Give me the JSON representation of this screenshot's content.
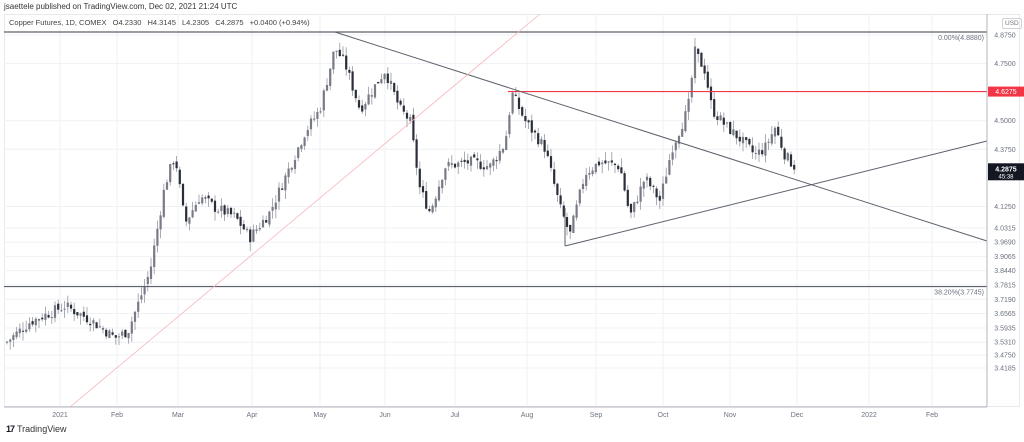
{
  "header": {
    "publish_line": "jsaettele published on TradingView.com, Dec 02, 2021 21:24 UTC"
  },
  "legend": {
    "symbol": "Copper Futures, 1D, COMEX",
    "open": "O4.2330",
    "high": "H4.3145",
    "low": "L4.2305",
    "close": "C4.2875",
    "change": "+0.0400 (+0.94%)"
  },
  "price_axis": {
    "currency": "USD",
    "ticks": [
      "4.8750",
      "4.7500",
      "4.5000",
      "4.3750",
      "4.1250",
      "4.0315",
      "3.9690",
      "3.9065",
      "3.8440",
      "3.7815",
      "3.7190",
      "3.6565",
      "3.5935",
      "3.5310",
      "3.4750",
      "3.4185"
    ],
    "last_price_label": "4.2875",
    "countdown": "45:38",
    "resistance_label": "4.6275",
    "colors": {
      "last_price_bg": "#131722",
      "resistance": "#f23645"
    }
  },
  "time_axis": {
    "ticks": [
      "2021",
      "Feb",
      "Mar",
      "Apr",
      "May",
      "Jun",
      "Jul",
      "Aug",
      "Sep",
      "Oct",
      "Nov",
      "Dec",
      "2022",
      "Feb"
    ]
  },
  "annotations": {
    "fib_top": "0.00%(4.8880)",
    "fib_382": "38.20%(3.7745)"
  },
  "footer": {
    "brand": "TradingView",
    "brand_mark": "17"
  },
  "chart_data": {
    "type": "candlestick",
    "title": "Copper Futures, 1D, COMEX",
    "xlabel": "",
    "ylabel": "USD",
    "ylim": [
      3.4,
      4.92
    ],
    "x_ticks": [
      "2021",
      "Feb",
      "Mar",
      "Apr",
      "May",
      "Jun",
      "Jul",
      "Aug",
      "Sep",
      "Oct",
      "Nov",
      "Dec",
      "2022",
      "Feb"
    ],
    "y_ticks": [
      4.875,
      4.75,
      4.5,
      4.375,
      4.125,
      4.0315,
      3.969,
      3.9065,
      3.844,
      3.7815,
      3.719,
      3.6565,
      3.5935,
      3.531,
      3.475,
      3.4185
    ],
    "last": {
      "open": 4.233,
      "high": 4.3145,
      "low": 4.2305,
      "close": 4.2875,
      "change": 0.04,
      "change_pct": 0.94
    },
    "horizontal_levels": [
      {
        "label": "0.00%",
        "value": 4.888,
        "color": "#787b86"
      },
      {
        "label": "resistance",
        "value": 4.6275,
        "color": "#f23645"
      },
      {
        "label": "38.20%",
        "value": 3.7745,
        "color": "#787b86"
      }
    ],
    "trendlines": [
      {
        "name": "descending",
        "from": [
          "2021-05-10",
          4.888
        ],
        "to": [
          "2022-03-01",
          3.97
        ]
      },
      {
        "name": "ascending",
        "from": [
          "2021-08-19",
          3.96
        ],
        "to": [
          "2022-03-01",
          4.41
        ]
      },
      {
        "name": "long-term-support",
        "color": "#f8b4b8",
        "from": [
          "2021-01-05",
          3.4
        ],
        "to": [
          "2021-08-01",
          4.9
        ]
      }
    ],
    "approx_monthly_closes": [
      {
        "x": "2021-01",
        "value": 3.52
      },
      {
        "x": "2021-02",
        "value": 4.06
      },
      {
        "x": "2021-03",
        "value": 4.02
      },
      {
        "x": "2021-04",
        "value": 4.49
      },
      {
        "x": "2021-05",
        "value": 4.63
      },
      {
        "x": "2021-06",
        "value": 4.29
      },
      {
        "x": "2021-07",
        "value": 4.47
      },
      {
        "x": "2021-08",
        "value": 4.32
      },
      {
        "x": "2021-09",
        "value": 4.09
      },
      {
        "x": "2021-10",
        "value": 4.38
      },
      {
        "x": "2021-11",
        "value": 4.29
      },
      {
        "x": "2021-12-02",
        "value": 4.2875
      }
    ]
  }
}
